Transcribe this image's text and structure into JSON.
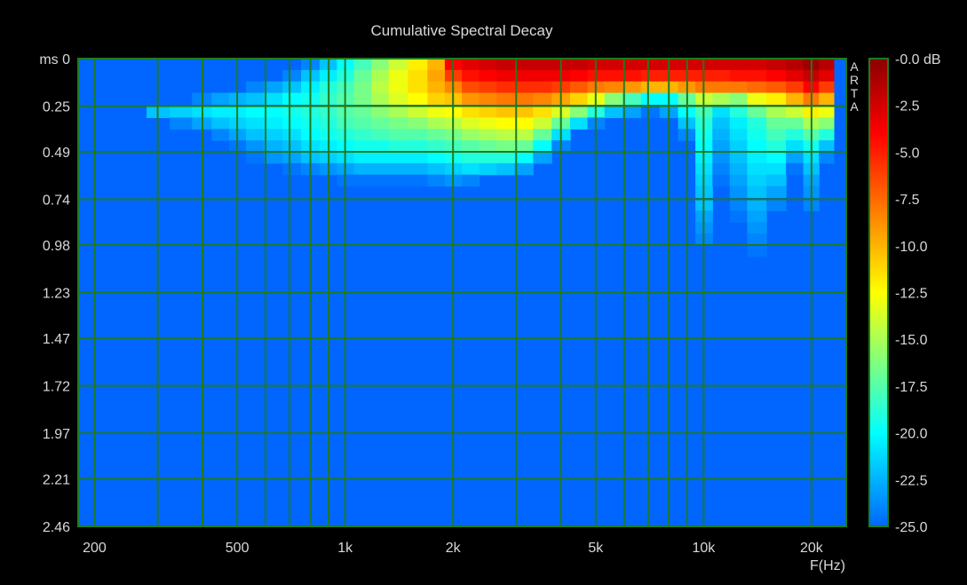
{
  "chart_data": {
    "type": "heatmap",
    "title": "Cumulative Spectral Decay",
    "watermark": "ARTA",
    "x_axis": {
      "label": "F(Hz)",
      "scale": "log",
      "range": [
        180,
        25000
      ],
      "ticks": [
        {
          "value": 200,
          "label": "200"
        },
        {
          "value": 500,
          "label": "500"
        },
        {
          "value": 1000,
          "label": "1k"
        },
        {
          "value": 2000,
          "label": "2k"
        },
        {
          "value": 5000,
          "label": "5k"
        },
        {
          "value": 10000,
          "label": "10k"
        },
        {
          "value": 20000,
          "label": "20k"
        }
      ],
      "gridlines": [
        200,
        300,
        400,
        500,
        600,
        700,
        800,
        900,
        1000,
        2000,
        3000,
        4000,
        5000,
        6000,
        7000,
        8000,
        9000,
        10000,
        20000
      ]
    },
    "y_axis": {
      "label": "ms",
      "range": [
        0,
        2.46
      ],
      "ticks": [
        {
          "value": 0,
          "label": "ms 0"
        },
        {
          "value": 0.25,
          "label": "0.25"
        },
        {
          "value": 0.49,
          "label": "0.49"
        },
        {
          "value": 0.74,
          "label": "0.74"
        },
        {
          "value": 0.98,
          "label": "0.98"
        },
        {
          "value": 1.23,
          "label": "1.23"
        },
        {
          "value": 1.47,
          "label": "1.47"
        },
        {
          "value": 1.72,
          "label": "1.72"
        },
        {
          "value": 1.97,
          "label": "1.97"
        },
        {
          "value": 2.21,
          "label": "2.21"
        },
        {
          "value": 2.46,
          "label": "2.46"
        }
      ]
    },
    "colorbar": {
      "range": [
        -25,
        0
      ],
      "ticks": [
        {
          "value": 0,
          "label": "-0.0 dB"
        },
        {
          "value": -2.5,
          "label": "-2.5"
        },
        {
          "value": -5,
          "label": "-5.0"
        },
        {
          "value": -7.5,
          "label": "-7.5"
        },
        {
          "value": -10,
          "label": "-10.0"
        },
        {
          "value": -12.5,
          "label": "-12.5"
        },
        {
          "value": -15,
          "label": "-15.0"
        },
        {
          "value": -17.5,
          "label": "-17.5"
        },
        {
          "value": -20,
          "label": "-20.0"
        },
        {
          "value": -22.5,
          "label": "-22.5"
        },
        {
          "value": -25,
          "label": "-25.0"
        }
      ],
      "colors": [
        "#0066ff",
        "#00ffff",
        "#ffff00",
        "#ff0000",
        "#8a0000"
      ],
      "color_stops_db": [
        -25,
        -20,
        -12.5,
        -4,
        0
      ]
    },
    "grid": true,
    "background_color": "#0066ff",
    "grid_color": "#1f7a1f",
    "frequencies_hz": [
      260,
      300,
      350,
      400,
      450,
      500,
      560,
      630,
      710,
      800,
      900,
      1000,
      1120,
      1250,
      1400,
      1600,
      1800,
      2000,
      2240,
      2500,
      2800,
      3150,
      3550,
      4000,
      4500,
      5000,
      5600,
      6300,
      7100,
      8000,
      9000,
      10000,
      11200,
      12500,
      14000,
      16000,
      18000,
      20000,
      22000
    ],
    "times_ms": [
      0.0,
      0.06,
      0.12,
      0.18,
      0.25,
      0.31,
      0.37,
      0.43,
      0.49,
      0.55,
      0.61,
      0.67,
      0.74,
      0.8,
      0.86,
      0.92,
      0.98
    ],
    "levels_db": [
      [
        -25,
        -25,
        -25,
        -25,
        -25,
        -25,
        -25,
        -25,
        -25,
        -25,
        -25,
        -25,
        -25,
        -25,
        -25,
        -25,
        -25
      ],
      [
        -25,
        -25,
        -25,
        -25,
        -22,
        -25,
        -25,
        -25,
        -25,
        -25,
        -25,
        -25,
        -25,
        -25,
        -25,
        -25,
        -25
      ],
      [
        -25,
        -25,
        -25,
        -25,
        -21.5,
        -24,
        -25,
        -25,
        -25,
        -25,
        -25,
        -25,
        -25,
        -25,
        -25,
        -25,
        -25
      ],
      [
        -25,
        -25,
        -25,
        -24,
        -21,
        -23,
        -25,
        -25,
        -25,
        -25,
        -25,
        -25,
        -25,
        -25,
        -25,
        -25,
        -25
      ],
      [
        -25,
        -25,
        -25,
        -23,
        -20.5,
        -22,
        -24,
        -25,
        -25,
        -25,
        -25,
        -25,
        -25,
        -25,
        -25,
        -25,
        -25
      ],
      [
        -25,
        -25,
        -25,
        -22.5,
        -20.5,
        -21.5,
        -23,
        -24.5,
        -25,
        -25,
        -25,
        -25,
        -25,
        -25,
        -25,
        -25,
        -25
      ],
      [
        -25,
        -25,
        -24,
        -22,
        -20,
        -21,
        -22,
        -23.5,
        -24.5,
        -25,
        -25,
        -25,
        -25,
        -25,
        -25,
        -25,
        -25
      ],
      [
        -25,
        -25,
        -23,
        -21,
        -20,
        -20.5,
        -21.5,
        -22.5,
        -23.5,
        -25,
        -25,
        -25,
        -25,
        -25,
        -25,
        -25,
        -25
      ],
      [
        -25,
        -24,
        -22,
        -20,
        -19.5,
        -20,
        -21,
        -22,
        -23,
        -24.5,
        -25,
        -25,
        -25,
        -25,
        -25,
        -25,
        -25
      ],
      [
        -24,
        -22,
        -20.5,
        -19.5,
        -19,
        -19.5,
        -20,
        -21,
        -22,
        -24,
        -25,
        -25,
        -25,
        -25,
        -25,
        -25,
        -25
      ],
      [
        -22,
        -20.5,
        -19,
        -18.5,
        -18.5,
        -19,
        -19.5,
        -20.5,
        -21.5,
        -23.5,
        -25,
        -25,
        -25,
        -25,
        -25,
        -25,
        -25
      ],
      [
        -20,
        -19,
        -18,
        -17.5,
        -17.5,
        -18,
        -19,
        -20,
        -21,
        -23,
        -24.5,
        -25,
        -25,
        -25,
        -25,
        -25,
        -25
      ],
      [
        -18,
        -17,
        -16.5,
        -16.5,
        -17,
        -17.5,
        -18.5,
        -19.5,
        -20.5,
        -22.5,
        -24.5,
        -25,
        -25,
        -25,
        -25,
        -25,
        -25
      ],
      [
        -16,
        -15,
        -14.5,
        -15,
        -16,
        -17,
        -18,
        -19.5,
        -20.5,
        -22.5,
        -24.5,
        -25,
        -25,
        -25,
        -25,
        -25,
        -25
      ],
      [
        -14,
        -13,
        -13,
        -13.5,
        -15,
        -16.5,
        -17.5,
        -19,
        -20.5,
        -22.5,
        -24.5,
        -25,
        -25,
        -25,
        -25,
        -25,
        -25
      ],
      [
        -12,
        -11.5,
        -11.5,
        -12.5,
        -14,
        -16,
        -17.5,
        -19,
        -20.5,
        -22.5,
        -24.5,
        -25,
        -25,
        -25,
        -25,
        -25,
        -25
      ],
      [
        -10,
        -9.5,
        -10,
        -11,
        -13,
        -15,
        -17,
        -18.5,
        -20,
        -22,
        -24,
        -25,
        -25,
        -25,
        -25,
        -25,
        -25
      ],
      [
        -4,
        -6,
        -8.5,
        -10.5,
        -12.5,
        -14.5,
        -16.5,
        -18,
        -19.5,
        -21.5,
        -23.5,
        -25,
        -25,
        -25,
        -25,
        -25,
        -25
      ],
      [
        -3,
        -4.5,
        -6.5,
        -9,
        -11.5,
        -13.5,
        -15.5,
        -17.5,
        -19,
        -21,
        -24,
        -25,
        -25,
        -25,
        -25,
        -25,
        -25
      ],
      [
        -2.5,
        -4,
        -6,
        -8.5,
        -11,
        -13,
        -15,
        -17,
        -19,
        -21.5,
        -25,
        -25,
        -25,
        -25,
        -25,
        -25,
        -25
      ],
      [
        -2,
        -3.5,
        -5.5,
        -8,
        -10.5,
        -12.5,
        -14.5,
        -16.5,
        -19,
        -22,
        -25,
        -25,
        -25,
        -25,
        -25,
        -25,
        -25
      ],
      [
        -2,
        -3.5,
        -5.5,
        -8,
        -10.5,
        -12.5,
        -14.5,
        -17,
        -20,
        -23,
        -25,
        -25,
        -25,
        -25,
        -25,
        -25,
        -25
      ],
      [
        -2,
        -3.5,
        -5.5,
        -8.5,
        -11.5,
        -14,
        -17,
        -20,
        -23,
        -25,
        -25,
        -25,
        -25,
        -25,
        -25,
        -25,
        -25
      ],
      [
        -2,
        -3.5,
        -6,
        -9.5,
        -13.5,
        -17,
        -21,
        -24,
        -25,
        -25,
        -25,
        -25,
        -25,
        -25,
        -25,
        -25,
        -25
      ],
      [
        -2,
        -4,
        -7,
        -11,
        -16,
        -21,
        -25,
        -25,
        -25,
        -25,
        -25,
        -25,
        -25,
        -25,
        -25,
        -25,
        -25
      ],
      [
        -2.5,
        -4.5,
        -8,
        -13,
        -19,
        -24,
        -25,
        -25,
        -25,
        -25,
        -25,
        -25,
        -25,
        -25,
        -25,
        -25,
        -25
      ],
      [
        -2.5,
        -4.5,
        -8.5,
        -16,
        -22,
        -25,
        -25,
        -25,
        -25,
        -25,
        -25,
        -25,
        -25,
        -25,
        -25,
        -25,
        -25
      ],
      [
        -2.5,
        -4.5,
        -9,
        -18,
        -23,
        -25,
        -25,
        -25,
        -25,
        -25,
        -25,
        -25,
        -25,
        -25,
        -25,
        -25,
        -25
      ],
      [
        -2.5,
        -5,
        -10,
        -20,
        -24.5,
        -25,
        -25,
        -25,
        -25,
        -25,
        -25,
        -25,
        -25,
        -25,
        -25,
        -25,
        -25
      ],
      [
        -2.5,
        -5,
        -10,
        -20,
        -23,
        -25,
        -25,
        -25,
        -25,
        -25,
        -25,
        -25,
        -25,
        -25,
        -25,
        -25,
        -25
      ],
      [
        -2.5,
        -5,
        -9,
        -17,
        -20,
        -22,
        -24,
        -25,
        -25,
        -25,
        -25,
        -25,
        -25,
        -25,
        -25,
        -25,
        -25
      ],
      [
        -2.5,
        -5,
        -8,
        -14,
        -18,
        -19,
        -19.5,
        -20,
        -20.5,
        -21,
        -21.5,
        -22,
        -22,
        -23,
        -23.5,
        -24,
        -25
      ],
      [
        -2.5,
        -5,
        -8,
        -15,
        -21,
        -22,
        -22.5,
        -23,
        -23.5,
        -24,
        -24.5,
        -25,
        -25,
        -25,
        -25,
        -25,
        -25
      ],
      [
        -2.5,
        -4.5,
        -8,
        -16,
        -19,
        -20.5,
        -21,
        -21.5,
        -22,
        -22.5,
        -23,
        -23.5,
        -24,
        -24.5,
        -25,
        -25,
        -25
      ],
      [
        -2.5,
        -4.5,
        -7.5,
        -13,
        -17,
        -19,
        -19.5,
        -20,
        -20.5,
        -21,
        -21.5,
        -22,
        -22.5,
        -23,
        -23.5,
        -24,
        -24.5
      ],
      [
        -2,
        -4,
        -7,
        -12,
        -15,
        -17,
        -18,
        -19,
        -20,
        -21,
        -22,
        -23,
        -24,
        -25,
        -25,
        -25,
        -25
      ],
      [
        -1.5,
        -3,
        -6,
        -10,
        -14,
        -17,
        -19,
        -21,
        -23,
        -24.5,
        -25,
        -25,
        -25,
        -25,
        -25,
        -25,
        -25
      ],
      [
        -0.5,
        -2,
        -4,
        -8,
        -12,
        -15,
        -17.5,
        -19.5,
        -21,
        -22,
        -23,
        -23.5,
        -24,
        -25,
        -25,
        -25,
        -25
      ],
      [
        -1.5,
        -3,
        -6,
        -10,
        -13,
        -16,
        -19,
        -22,
        -24,
        -25,
        -25,
        -25,
        -25,
        -25,
        -25,
        -25,
        -25
      ]
    ]
  }
}
